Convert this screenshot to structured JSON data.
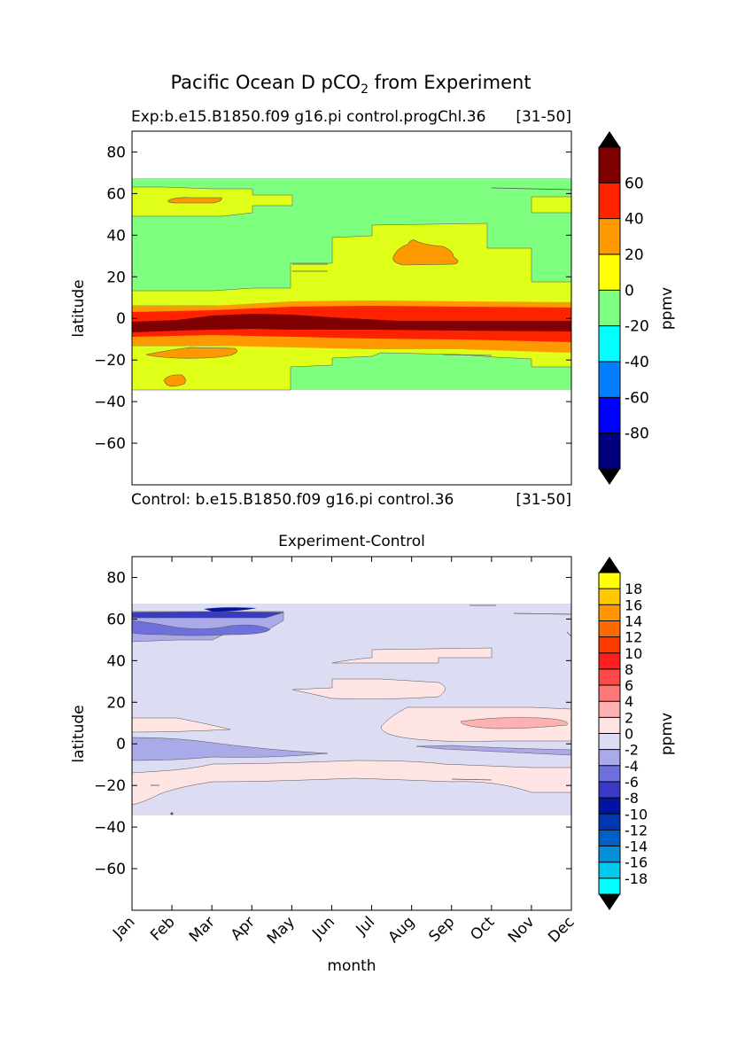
{
  "figure": {
    "suptitle": "Pacific Ocean D pCO",
    "suptitle_sub": "2",
    "suptitle_tail": " from Experiment"
  },
  "chart_data": [
    {
      "type": "heatmap",
      "subplot": "top",
      "title_left": "Exp:b.e15.B1850.f09 g16.pi control.progChl.36",
      "title_right": "[31-50]",
      "footer_left": "Control: b.e15.B1850.f09 g16.pi control.36",
      "footer_right": "[31-50]",
      "ylabel": "latitude",
      "xlabel": "",
      "xlim": [
        0,
        11
      ],
      "ylim": [
        -80,
        90
      ],
      "yticks": [
        "80",
        "60",
        "40",
        "20",
        "0",
        "−20",
        "−40",
        "−60"
      ],
      "ytick_values": [
        80,
        60,
        40,
        20,
        0,
        -20,
        -40,
        -60
      ],
      "data_lat_range": [
        -34,
        67
      ],
      "colorbar": {
        "label": "ppmv",
        "extend": "both",
        "levels": [
          -100,
          -80,
          -60,
          -40,
          -20,
          0,
          20,
          40,
          60,
          80
        ],
        "colors": [
          "#00007f",
          "#0000ff",
          "#007fff",
          "#00ffff",
          "#7fff7f",
          "#ffff00",
          "#ff9900",
          "#ff2200",
          "#7f0000"
        ],
        "under_color": "#000000",
        "over_color": "#000000",
        "tick_labels": [
          "60",
          "40",
          "20",
          "0",
          "-20",
          "-40",
          "-60",
          "-80"
        ],
        "tick_values": [
          60,
          40,
          20,
          0,
          -20,
          -40,
          -60,
          -80
        ]
      },
      "regions": [
        {
          "level": "-20 to 0",
          "lat_bands": "67 to 60 (most months); 48 to 14 (Jan–May); 40 to 16 (Oct–Dec); -20 to -34 (May–Dec)"
        },
        {
          "level": "0 to 20",
          "lat_bands": "62 to 52 (Jan–Apr); 14 to 5 (all months); 45 to 14 (Jun–Sep); -12 to -34 (Jan–May)"
        },
        {
          "level": "20 to 40",
          "lat_bands": "5 to 3; -8 to -12; patches at 57N Feb, 30N Aug, -19N Feb–Mar, -30N Jan"
        },
        {
          "level": "40 to 60",
          "lat_bands": "3 to 0 and -5 to -8 (all months)"
        },
        {
          "level": "60 to 80",
          "lat_bands": "0 to -5 (peak Mar–Jun)"
        }
      ]
    },
    {
      "type": "heatmap",
      "subplot": "bottom",
      "title": "Experiment-Control",
      "ylabel": "latitude",
      "xlabel": "month",
      "xlim": [
        0,
        11
      ],
      "ylim": [
        -80,
        90
      ],
      "categories": [
        "Jan",
        "Feb",
        "Mar",
        "Apr",
        "May",
        "Jun",
        "Jul",
        "Aug",
        "Sep",
        "Oct",
        "Nov",
        "Dec"
      ],
      "yticks": [
        "80",
        "60",
        "40",
        "20",
        "0",
        "−20",
        "−40",
        "−60"
      ],
      "ytick_values": [
        80,
        60,
        40,
        20,
        0,
        -20,
        -40,
        -60
      ],
      "data_lat_range": [
        -34,
        67
      ],
      "colorbar": {
        "label": "ppmv",
        "extend": "both",
        "levels": [
          -20,
          -18,
          -16,
          -14,
          -12,
          -10,
          -8,
          -6,
          -4,
          -2,
          0,
          2,
          4,
          6,
          8,
          10,
          12,
          14,
          16,
          18,
          20
        ],
        "colors": [
          "#00ffff",
          "#00c8ee",
          "#0090dc",
          "#0060c8",
          "#0038b4",
          "#0014a0",
          "#3a3ac8",
          "#7070dc",
          "#aaaae8",
          "#dcdcf2",
          "#ffe4e4",
          "#ffb0b0",
          "#ff7878",
          "#ff4848",
          "#ff1e1e",
          "#ff3c00",
          "#ff6a00",
          "#ff9600",
          "#ffc800",
          "#ffff00"
        ],
        "under_color": "#000000",
        "over_color": "#000000",
        "tick_labels": [
          "18",
          "16",
          "14",
          "12",
          "10",
          "8",
          "6",
          "4",
          "2",
          "0",
          "-2",
          "-4",
          "-6",
          "-8",
          "-10",
          "-12",
          "-14",
          "-16",
          "-18"
        ],
        "tick_values": [
          18,
          16,
          14,
          12,
          10,
          8,
          6,
          4,
          2,
          0,
          -2,
          -4,
          -6,
          -8,
          -10,
          -12,
          -14,
          -16,
          -18
        ]
      },
      "regions": [
        {
          "level": "-2 to 0",
          "lat_bands": "background 67 to -34"
        },
        {
          "level": "-4 to -2",
          "lat_bands": "62 to 45 (Jan–Apr); 3 to -9 (Jan–May)"
        },
        {
          "level": "-6 to -4",
          "lat_bands": "58 to 50 (Jan–Apr)"
        },
        {
          "level": "-8 to -6",
          "lat_bands": "62 to 60 (Jan–May)"
        },
        {
          "level": "0 to 2",
          "lat_bands": "13 to 5 (Jan); 45 to 40 (Jun–Sep); 30 to 24 (Jul–Aug); 17 to 2 (Aug–Dec); -10 to -34 (Jan–Dec)"
        },
        {
          "level": "2 to 4",
          "lat_bands": "12 to 9 (Oct–Nov)"
        }
      ]
    }
  ]
}
